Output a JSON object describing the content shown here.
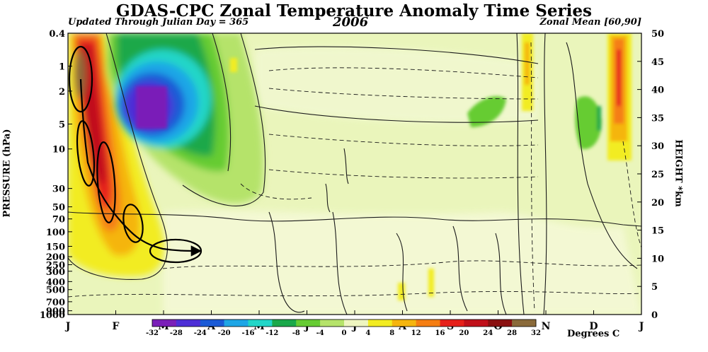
{
  "chart_data": {
    "type": "heatmap",
    "title": "GDAS-CPC Zonal Temperature Anomaly Time Series",
    "subtitle_left": "Updated Through Julian Day = 365",
    "year": "2006",
    "subtitle_right": "Zonal Mean [60,90]",
    "ylabel_left": "PRESSURE (hPa)",
    "ylabel_right": "HEIGHT *km",
    "colorbar_label": "Degrees C",
    "x_ticks": [
      "J",
      "F",
      "M",
      "A",
      "M",
      "J",
      "J",
      "A",
      "S",
      "O",
      "N",
      "D",
      "J"
    ],
    "pressure_ticks": [
      "0.4",
      "1",
      "2",
      "5",
      "10",
      "30",
      "50",
      "70",
      "100",
      "150",
      "200",
      "250",
      "300",
      "400",
      "500",
      "700",
      "900",
      "1000"
    ],
    "pressure_values": [
      0.4,
      1,
      2,
      5,
      10,
      30,
      50,
      70,
      100,
      150,
      200,
      250,
      300,
      400,
      500,
      700,
      900,
      1000
    ],
    "height_ticks": [
      "50",
      "45",
      "40",
      "35",
      "30",
      "25",
      "20",
      "15",
      "10",
      "5",
      "0"
    ],
    "height_values": [
      50,
      45,
      40,
      35,
      30,
      25,
      20,
      15,
      10,
      5,
      0
    ],
    "ylim_height": [
      0,
      50
    ],
    "colorbar": {
      "levels": [
        "-32",
        "-28",
        "-24",
        "-20",
        "-16",
        "-12",
        "-8",
        "-4",
        "0",
        "4",
        "8",
        "12",
        "16",
        "20",
        "24",
        "28",
        "32"
      ],
      "colors": [
        "#7a1fb8",
        "#4d2ed6",
        "#1a5ad6",
        "#1ea6e6",
        "#22d6c8",
        "#1aa84a",
        "#66cc33",
        "#b5e36a",
        "#eef5c0",
        "#f2ec22",
        "#f5b50f",
        "#f57e12",
        "#e6201a",
        "#c0101a",
        "#8a1010",
        "#8a6a3a"
      ]
    }
  },
  "colors": {
    "background_field": "#eaf5bb",
    "contour": "#1a1a1a",
    "plot_border": "#000000"
  }
}
